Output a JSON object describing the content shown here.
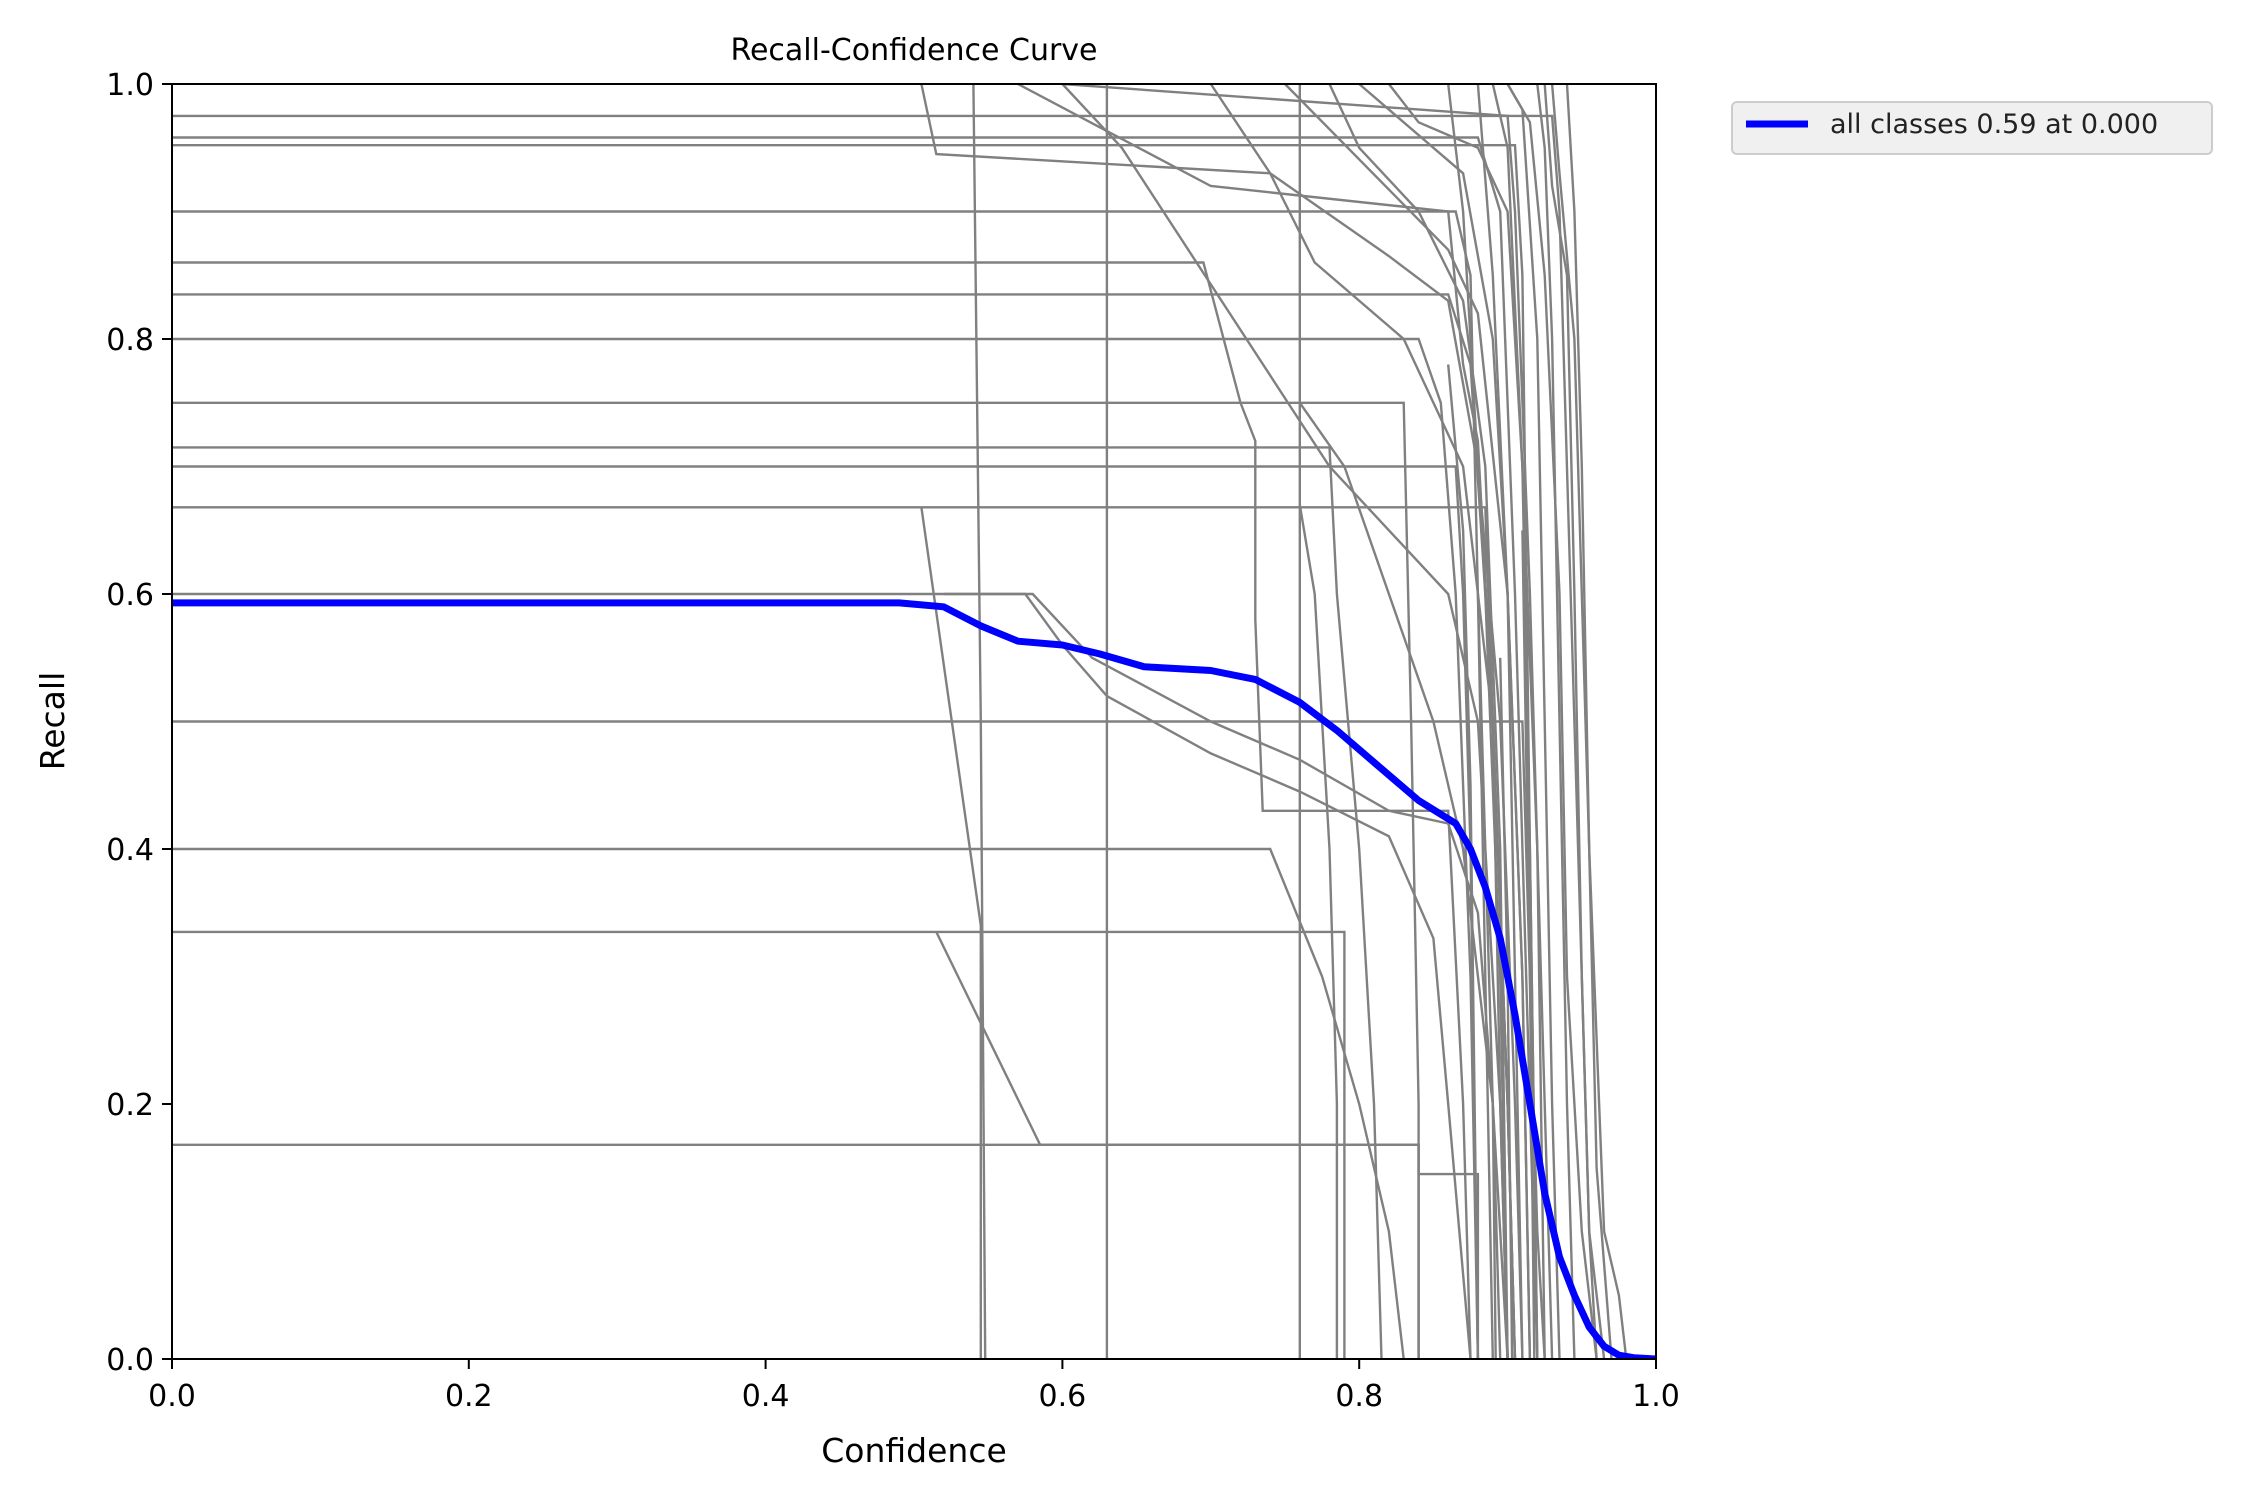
{
  "chart_data": {
    "type": "line",
    "title": "Recall-Confidence Curve",
    "xlabel": "Confidence",
    "ylabel": "Recall",
    "xlim": [
      0,
      1
    ],
    "ylim": [
      0,
      1
    ],
    "xticks": [
      "0.0",
      "0.2",
      "0.4",
      "0.6",
      "0.8",
      "1.0"
    ],
    "yticks": [
      "0.0",
      "0.2",
      "0.4",
      "0.6",
      "0.8",
      "1.0"
    ],
    "grid": false,
    "legend": {
      "position": "outside-top-right"
    },
    "series": [
      {
        "name": "all classes 0.59 at 0.000",
        "color": "#0000ff",
        "x": [
          0,
          0.1,
          0.2,
          0.3,
          0.4,
          0.49,
          0.52,
          0.545,
          0.57,
          0.6,
          0.625,
          0.655,
          0.7,
          0.73,
          0.76,
          0.785,
          0.81,
          0.84,
          0.865,
          0.875,
          0.885,
          0.895,
          0.905,
          0.915,
          0.925,
          0.935,
          0.945,
          0.955,
          0.965,
          0.975,
          0.985,
          1.0
        ],
        "y": [
          0.593,
          0.593,
          0.593,
          0.593,
          0.593,
          0.593,
          0.59,
          0.575,
          0.563,
          0.56,
          0.553,
          0.543,
          0.54,
          0.533,
          0.515,
          0.493,
          0.468,
          0.438,
          0.42,
          0.4,
          0.37,
          0.33,
          0.27,
          0.2,
          0.13,
          0.08,
          0.05,
          0.025,
          0.01,
          0.003,
          0.001,
          0.0
        ]
      }
    ],
    "background_series_color": "#808080",
    "background_series": [
      [
        [
          0,
          0.975
        ],
        [
          0.93,
          0.975
        ],
        [
          0.935,
          0.9
        ],
        [
          0.945,
          0.5
        ],
        [
          0.955,
          0.1
        ],
        [
          0.965,
          0
        ]
      ],
      [
        [
          0,
          0.958
        ],
        [
          0.88,
          0.958
        ],
        [
          0.895,
          0.9
        ],
        [
          0.905,
          0.6
        ],
        [
          0.915,
          0.2
        ],
        [
          0.92,
          0
        ]
      ],
      [
        [
          0,
          0.952
        ],
        [
          0.905,
          0.952
        ],
        [
          0.91,
          0.85
        ],
        [
          0.915,
          0.4
        ],
        [
          0.92,
          0
        ]
      ],
      [
        [
          0,
          0.9
        ],
        [
          0.865,
          0.9
        ],
        [
          0.875,
          0.85
        ],
        [
          0.88,
          0.6
        ],
        [
          0.885,
          0.3
        ],
        [
          0.89,
          0
        ]
      ],
      [
        [
          0,
          0.86
        ],
        [
          0.695,
          0.86
        ],
        [
          0.72,
          0.75
        ],
        [
          0.73,
          0.72
        ],
        [
          0.73,
          0.58
        ],
        [
          0.735,
          0.43
        ],
        [
          0.86,
          0.43
        ],
        [
          0.87,
          0.2
        ],
        [
          0.875,
          0
        ]
      ],
      [
        [
          0,
          0.835
        ],
        [
          0.86,
          0.835
        ],
        [
          0.875,
          0.78
        ],
        [
          0.885,
          0.6
        ],
        [
          0.895,
          0.3
        ],
        [
          0.9,
          0
        ]
      ],
      [
        [
          0,
          0.8
        ],
        [
          0.84,
          0.8
        ],
        [
          0.855,
          0.75
        ],
        [
          0.865,
          0.6
        ],
        [
          0.875,
          0.3
        ],
        [
          0.88,
          0
        ]
      ],
      [
        [
          0,
          0.75
        ],
        [
          0.83,
          0.75
        ],
        [
          0.835,
          0.5
        ],
        [
          0.84,
          0.2
        ],
        [
          0.84,
          0
        ]
      ],
      [
        [
          0,
          0.715
        ],
        [
          0.78,
          0.715
        ],
        [
          0.785,
          0.6
        ],
        [
          0.8,
          0.4
        ],
        [
          0.81,
          0.2
        ],
        [
          0.815,
          0
        ]
      ],
      [
        [
          0,
          0.7
        ],
        [
          0.865,
          0.7
        ],
        [
          0.87,
          0.6
        ],
        [
          0.875,
          0.4
        ],
        [
          0.88,
          0
        ]
      ],
      [
        [
          0,
          0.668
        ],
        [
          0.885,
          0.668
        ],
        [
          0.89,
          0.5
        ],
        [
          0.895,
          0.2
        ],
        [
          0.9,
          0
        ]
      ],
      [
        [
          0,
          0.6
        ],
        [
          0.575,
          0.6
        ],
        [
          0.6,
          0.56
        ],
        [
          0.63,
          0.52
        ],
        [
          0.7,
          0.475
        ],
        [
          0.76,
          0.445
        ],
        [
          0.82,
          0.41
        ],
        [
          0.85,
          0.33
        ],
        [
          0.86,
          0.2
        ],
        [
          0.875,
          0
        ]
      ],
      [
        [
          0,
          0.5
        ],
        [
          0.91,
          0.5
        ],
        [
          0.915,
          0.3
        ],
        [
          0.92,
          0.1
        ],
        [
          0.925,
          0
        ]
      ],
      [
        [
          0,
          0.4
        ],
        [
          0.74,
          0.4
        ],
        [
          0.775,
          0.3
        ],
        [
          0.8,
          0.2
        ],
        [
          0.82,
          0.1
        ],
        [
          0.83,
          0
        ]
      ],
      [
        [
          0,
          0.335
        ],
        [
          0.79,
          0.335
        ],
        [
          0.79,
          0.17
        ],
        [
          0.79,
          0
        ]
      ],
      [
        [
          0,
          0.168
        ],
        [
          0.84,
          0.168
        ],
        [
          0.84,
          0
        ]
      ],
      [
        [
          0.505,
          0.668
        ],
        [
          0.545,
          0.34
        ],
        [
          0.545,
          0
        ]
      ],
      [
        [
          0.515,
          0.335
        ],
        [
          0.585,
          0.168
        ],
        [
          0.84,
          0.168
        ],
        [
          0.84,
          0.145
        ],
        [
          0.88,
          0.145
        ],
        [
          0.88,
          0
        ]
      ],
      [
        [
          0.52,
          0.6
        ],
        [
          0.58,
          0.6
        ],
        [
          0.62,
          0.55
        ],
        [
          0.7,
          0.5
        ],
        [
          0.76,
          0.47
        ],
        [
          0.82,
          0.43
        ],
        [
          0.86,
          0.42
        ],
        [
          0.88,
          0.35
        ],
        [
          0.89,
          0.2
        ],
        [
          0.9,
          0
        ]
      ],
      [
        [
          0.505,
          1.0
        ],
        [
          0.515,
          0.945
        ],
        [
          0.74,
          0.93
        ],
        [
          0.82,
          0.865
        ],
        [
          0.86,
          0.83
        ],
        [
          0.88,
          0.7
        ],
        [
          0.895,
          0.5
        ],
        [
          0.905,
          0.2
        ],
        [
          0.91,
          0
        ]
      ],
      [
        [
          0.54,
          1.0
        ],
        [
          0.545,
          0.5
        ],
        [
          0.548,
          0
        ]
      ],
      [
        [
          0.63,
          1.0
        ],
        [
          0.63,
          0.5
        ],
        [
          0.63,
          0
        ]
      ],
      [
        [
          0.57,
          1.0
        ],
        [
          0.7,
          0.92
        ],
        [
          0.86,
          0.9
        ],
        [
          0.87,
          0.78
        ],
        [
          0.88,
          0.72
        ],
        [
          0.89,
          0.5
        ],
        [
          0.9,
          0.2
        ],
        [
          0.905,
          0
        ]
      ],
      [
        [
          0.6,
          1.0
        ],
        [
          0.64,
          0.95
        ],
        [
          0.78,
          0.7
        ],
        [
          0.86,
          0.6
        ],
        [
          0.88,
          0.5
        ],
        [
          0.895,
          0.2
        ],
        [
          0.9,
          0
        ]
      ],
      [
        [
          0.6,
          1.0
        ],
        [
          0.9,
          0.975
        ],
        [
          0.905,
          0.9
        ],
        [
          0.915,
          0.6
        ],
        [
          0.925,
          0.2
        ],
        [
          0.93,
          0
        ]
      ],
      [
        [
          0.7,
          1.0
        ],
        [
          0.74,
          0.93
        ],
        [
          0.77,
          0.86
        ],
        [
          0.83,
          0.8
        ],
        [
          0.87,
          0.7
        ],
        [
          0.89,
          0.5
        ],
        [
          0.9,
          0.2
        ],
        [
          0.905,
          0
        ]
      ],
      [
        [
          0.75,
          1.0
        ],
        [
          0.86,
          0.87
        ],
        [
          0.88,
          0.82
        ],
        [
          0.9,
          0.6
        ],
        [
          0.91,
          0.3
        ],
        [
          0.915,
          0
        ]
      ],
      [
        [
          0.76,
          1.0
        ],
        [
          0.76,
          0.5
        ],
        [
          0.76,
          0
        ]
      ],
      [
        [
          0.76,
          0.75
        ],
        [
          0.79,
          0.7
        ],
        [
          0.82,
          0.6
        ],
        [
          0.85,
          0.5
        ],
        [
          0.87,
          0.4
        ],
        [
          0.89,
          0.2
        ],
        [
          0.895,
          0
        ]
      ],
      [
        [
          0.76,
          0.67
        ],
        [
          0.77,
          0.6
        ],
        [
          0.78,
          0.4
        ],
        [
          0.785,
          0.2
        ],
        [
          0.785,
          0
        ]
      ],
      [
        [
          0.78,
          1.0
        ],
        [
          0.8,
          0.95
        ],
        [
          0.84,
          0.9
        ],
        [
          0.87,
          0.83
        ],
        [
          0.885,
          0.7
        ],
        [
          0.895,
          0.4
        ],
        [
          0.9,
          0
        ]
      ],
      [
        [
          0.8,
          1.0
        ],
        [
          0.83,
          0.97
        ],
        [
          0.87,
          0.93
        ],
        [
          0.89,
          0.8
        ],
        [
          0.9,
          0.6
        ],
        [
          0.91,
          0.3
        ],
        [
          0.915,
          0
        ]
      ],
      [
        [
          0.82,
          1.0
        ],
        [
          0.84,
          0.97
        ],
        [
          0.88,
          0.95
        ],
        [
          0.9,
          0.9
        ],
        [
          0.91,
          0.7
        ],
        [
          0.92,
          0.4
        ],
        [
          0.925,
          0
        ]
      ],
      [
        [
          0.86,
          1.0
        ],
        [
          0.87,
          0.9
        ],
        [
          0.88,
          0.7
        ],
        [
          0.89,
          0.5
        ],
        [
          0.9,
          0.2
        ],
        [
          0.905,
          0
        ]
      ],
      [
        [
          0.88,
          1.0
        ],
        [
          0.89,
          0.85
        ],
        [
          0.9,
          0.6
        ],
        [
          0.905,
          0.3
        ],
        [
          0.91,
          0
        ]
      ],
      [
        [
          0.89,
          1.0
        ],
        [
          0.9,
          0.95
        ],
        [
          0.91,
          0.7
        ],
        [
          0.915,
          0.4
        ],
        [
          0.92,
          0
        ]
      ],
      [
        [
          0.9,
          1.0
        ],
        [
          0.91,
          0.98
        ],
        [
          0.92,
          0.8
        ],
        [
          0.925,
          0.5
        ],
        [
          0.93,
          0.2
        ],
        [
          0.935,
          0
        ]
      ],
      [
        [
          0.9,
          1.0
        ],
        [
          0.915,
          0.97
        ],
        [
          0.925,
          0.85
        ],
        [
          0.935,
          0.6
        ],
        [
          0.94,
          0.3
        ],
        [
          0.95,
          0.1
        ],
        [
          0.96,
          0
        ]
      ],
      [
        [
          0.92,
          1.0
        ],
        [
          0.925,
          0.95
        ],
        [
          0.93,
          0.8
        ],
        [
          0.935,
          0.5
        ],
        [
          0.94,
          0.2
        ],
        [
          0.945,
          0
        ]
      ],
      [
        [
          0.925,
          1.0
        ],
        [
          0.93,
          0.92
        ],
        [
          0.94,
          0.85
        ],
        [
          0.945,
          0.6
        ],
        [
          0.95,
          0.3
        ],
        [
          0.955,
          0.1
        ],
        [
          0.96,
          0
        ]
      ],
      [
        [
          0.93,
          1.0
        ],
        [
          0.935,
          0.93
        ],
        [
          0.945,
          0.8
        ],
        [
          0.955,
          0.4
        ],
        [
          0.965,
          0.1
        ],
        [
          0.975,
          0.05
        ],
        [
          0.98,
          0
        ]
      ],
      [
        [
          0.94,
          1.0
        ],
        [
          0.945,
          0.9
        ],
        [
          0.95,
          0.7
        ],
        [
          0.955,
          0.4
        ],
        [
          0.96,
          0.15
        ],
        [
          0.97,
          0
        ]
      ],
      [
        [
          0.86,
          0.78
        ],
        [
          0.87,
          0.65
        ],
        [
          0.875,
          0.45
        ],
        [
          0.88,
          0
        ]
      ],
      [
        [
          0.88,
          0.6
        ],
        [
          0.885,
          0.4
        ],
        [
          0.89,
          0.2
        ],
        [
          0.892,
          0
        ]
      ],
      [
        [
          0.895,
          0.55
        ],
        [
          0.9,
          0.3
        ],
        [
          0.903,
          0
        ]
      ],
      [
        [
          0.91,
          0.65
        ],
        [
          0.915,
          0.3
        ],
        [
          0.918,
          0
        ]
      ]
    ]
  }
}
